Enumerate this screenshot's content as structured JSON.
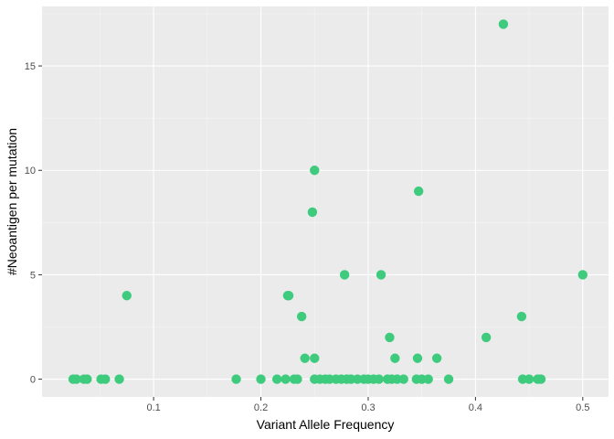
{
  "chart_data": {
    "type": "scatter",
    "title": "",
    "xlabel": "Variant Allele Frequency",
    "ylabel": "#Neoantigen per mutation",
    "xlim": [
      0.02,
      0.5
    ],
    "ylim": [
      0,
      17
    ],
    "x_ticks": [
      0.1,
      0.2,
      0.3,
      0.4,
      0.5
    ],
    "x_tick_labels": [
      "0.1",
      "0.2",
      "0.3",
      "0.4",
      "0.5"
    ],
    "y_ticks": [
      0,
      5,
      10,
      15
    ],
    "y_tick_labels": [
      "0",
      "5",
      "10",
      "15"
    ],
    "grid": true,
    "legend": "none",
    "colors": {
      "point": "#3ecb7e",
      "panel": "#ebebeb",
      "grid_major": "#ffffff",
      "grid_minor": "#f5f5f5"
    },
    "points": [
      {
        "x": 0.025,
        "y": 0
      },
      {
        "x": 0.028,
        "y": 0
      },
      {
        "x": 0.035,
        "y": 0
      },
      {
        "x": 0.038,
        "y": 0
      },
      {
        "x": 0.051,
        "y": 0
      },
      {
        "x": 0.055,
        "y": 0
      },
      {
        "x": 0.068,
        "y": 0
      },
      {
        "x": 0.075,
        "y": 4
      },
      {
        "x": 0.177,
        "y": 0
      },
      {
        "x": 0.2,
        "y": 0
      },
      {
        "x": 0.215,
        "y": 0
      },
      {
        "x": 0.223,
        "y": 0
      },
      {
        "x": 0.225,
        "y": 4
      },
      {
        "x": 0.226,
        "y": 4
      },
      {
        "x": 0.231,
        "y": 0
      },
      {
        "x": 0.234,
        "y": 0
      },
      {
        "x": 0.238,
        "y": 3
      },
      {
        "x": 0.241,
        "y": 1
      },
      {
        "x": 0.248,
        "y": 8
      },
      {
        "x": 0.25,
        "y": 10
      },
      {
        "x": 0.25,
        "y": 1
      },
      {
        "x": 0.25,
        "y": 0
      },
      {
        "x": 0.255,
        "y": 0
      },
      {
        "x": 0.26,
        "y": 0
      },
      {
        "x": 0.264,
        "y": 0
      },
      {
        "x": 0.27,
        "y": 0
      },
      {
        "x": 0.275,
        "y": 0
      },
      {
        "x": 0.278,
        "y": 5
      },
      {
        "x": 0.28,
        "y": 0
      },
      {
        "x": 0.284,
        "y": 0
      },
      {
        "x": 0.29,
        "y": 0
      },
      {
        "x": 0.296,
        "y": 0
      },
      {
        "x": 0.3,
        "y": 0
      },
      {
        "x": 0.305,
        "y": 0
      },
      {
        "x": 0.31,
        "y": 0
      },
      {
        "x": 0.312,
        "y": 5
      },
      {
        "x": 0.318,
        "y": 0
      },
      {
        "x": 0.32,
        "y": 2
      },
      {
        "x": 0.322,
        "y": 0
      },
      {
        "x": 0.325,
        "y": 1
      },
      {
        "x": 0.327,
        "y": 0
      },
      {
        "x": 0.333,
        "y": 0
      },
      {
        "x": 0.345,
        "y": 0
      },
      {
        "x": 0.346,
        "y": 1
      },
      {
        "x": 0.347,
        "y": 9
      },
      {
        "x": 0.35,
        "y": 0
      },
      {
        "x": 0.356,
        "y": 0
      },
      {
        "x": 0.364,
        "y": 1
      },
      {
        "x": 0.375,
        "y": 0
      },
      {
        "x": 0.41,
        "y": 2
      },
      {
        "x": 0.426,
        "y": 17
      },
      {
        "x": 0.443,
        "y": 3
      },
      {
        "x": 0.444,
        "y": 0
      },
      {
        "x": 0.45,
        "y": 0
      },
      {
        "x": 0.458,
        "y": 0
      },
      {
        "x": 0.461,
        "y": 0
      },
      {
        "x": 0.5,
        "y": 5
      }
    ]
  }
}
